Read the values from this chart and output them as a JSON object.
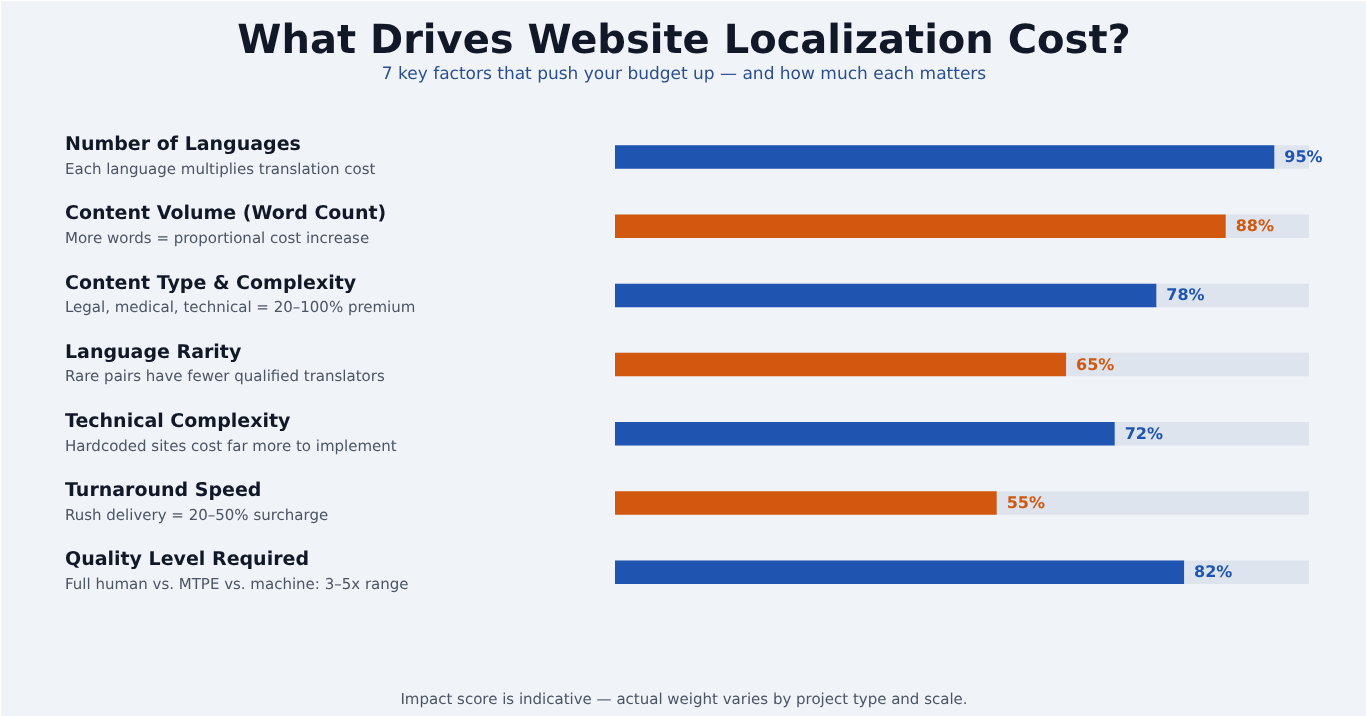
{
  "chart_data": {
    "type": "bar",
    "orientation": "horizontal",
    "title": "What Drives Website Localization Cost?",
    "subtitle": "7 key factors that push your budget up — and how much each matters",
    "categories": [
      "Number of Languages",
      "Content Volume (Word Count)",
      "Content Type & Complexity",
      "Language Rarity",
      "Technical Complexity",
      "Turnaround Speed",
      "Quality Level Required"
    ],
    "values": [
      95,
      88,
      78,
      65,
      72,
      55,
      82
    ],
    "colors": [
      "#1f55b0",
      "#d2580f",
      "#1f55b0",
      "#d2580f",
      "#1f55b0",
      "#d2580f",
      "#1f55b0"
    ],
    "value_labels": [
      "95%",
      "88%",
      "78%",
      "65%",
      "72%",
      "55%",
      "82%"
    ],
    "xlim": [
      0,
      100
    ],
    "tick_labels": false,
    "grid": false,
    "annotations": [
      "Each language multiplies translation cost",
      "More words = proportional cost increase",
      "Legal, medical, technical = 20–100% premium",
      "Rare pairs have fewer qualified translators",
      "Hardcoded sites cost far more to implement",
      "Rush delivery = 20–50% surcharge",
      "Full human vs. MTPE vs. machine: 3–5x range",
      "Impact score is indicative — actual weight varies by project type and scale."
    ]
  }
}
